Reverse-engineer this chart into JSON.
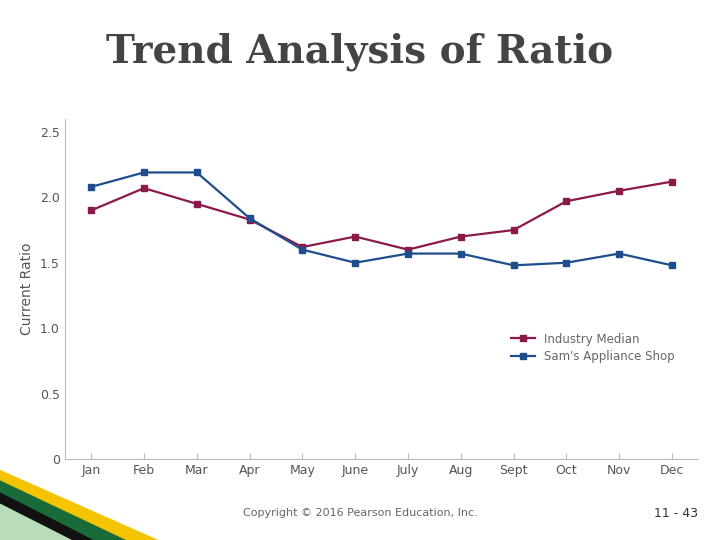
{
  "title": "Trend Analysis of Ratio",
  "title_fontsize": 28,
  "title_color": "#444444",
  "ylabel": "Current Ratio",
  "ylabel_fontsize": 10,
  "months": [
    "Jan",
    "Feb",
    "Mar",
    "Apr",
    "May",
    "June",
    "July",
    "Aug",
    "Sept",
    "Oct",
    "Nov",
    "Dec"
  ],
  "industry_median": [
    1.9,
    2.07,
    1.95,
    1.83,
    1.62,
    1.7,
    1.6,
    1.7,
    1.75,
    1.97,
    2.05,
    2.12
  ],
  "sams_appliance": [
    2.08,
    2.19,
    2.19,
    1.84,
    1.6,
    1.5,
    1.57,
    1.57,
    1.48,
    1.5,
    1.57,
    1.48
  ],
  "industry_color": "#8B1A4A",
  "sams_color": "#1F4E8C",
  "legend_labels": [
    "Industry Median",
    "Sam's Appliance Shop"
  ],
  "ylim": [
    0,
    2.6
  ],
  "yticks": [
    0,
    0.5,
    1.0,
    1.5,
    2.0,
    2.5
  ],
  "background_color": "#FFFFFF",
  "header_bar_color1": "#2E8B5A",
  "header_bar_color2": "#1A6B40",
  "footer_copyright": "Copyright © 2016 Pearson Education, Inc.",
  "footer_page": "11 - 43",
  "linewidth": 1.6,
  "markersize": 4,
  "tick_fontsize": 9
}
